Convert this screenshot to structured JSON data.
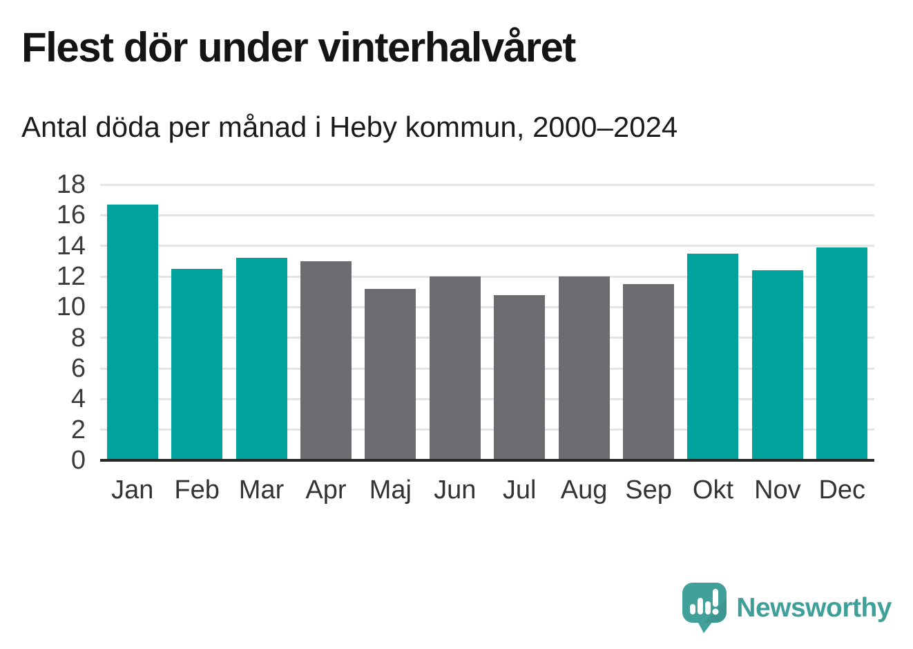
{
  "header": {
    "title": "Flest dör under vinterhalvåret",
    "subtitle": "Antal döda per månad i Heby kommun, 2000–2024"
  },
  "chart_data": {
    "type": "bar",
    "title": "Flest dör under vinterhalvåret",
    "subtitle": "Antal döda per månad i Heby kommun, 2000–2024",
    "categories": [
      "Jan",
      "Feb",
      "Mar",
      "Apr",
      "Maj",
      "Jun",
      "Jul",
      "Aug",
      "Sep",
      "Okt",
      "Nov",
      "Dec"
    ],
    "values": [
      16.7,
      12.5,
      13.2,
      13.0,
      11.2,
      12.0,
      10.8,
      12.0,
      11.5,
      13.5,
      12.4,
      13.9
    ],
    "bar_roles": [
      "highlight",
      "highlight",
      "highlight",
      "base",
      "base",
      "base",
      "base",
      "base",
      "base",
      "highlight",
      "highlight",
      "highlight"
    ],
    "xlabel": "",
    "ylabel": "",
    "ylim": [
      0,
      18
    ],
    "yticks": [
      0,
      2,
      4,
      6,
      8,
      10,
      12,
      14,
      16,
      18
    ],
    "grid": true,
    "legend": "none",
    "colors": {
      "highlight": "#00a39b",
      "base": "#6d6c71",
      "gridline": "#e4e4e4",
      "axis_line": "#262626",
      "tick_text": "#3a3a3a"
    }
  },
  "footer": {
    "brand": "Newsworthy",
    "logo_icon": "newsworthy-speech-bubble-bar-chart-icon",
    "brand_color": "#3fa09a"
  }
}
